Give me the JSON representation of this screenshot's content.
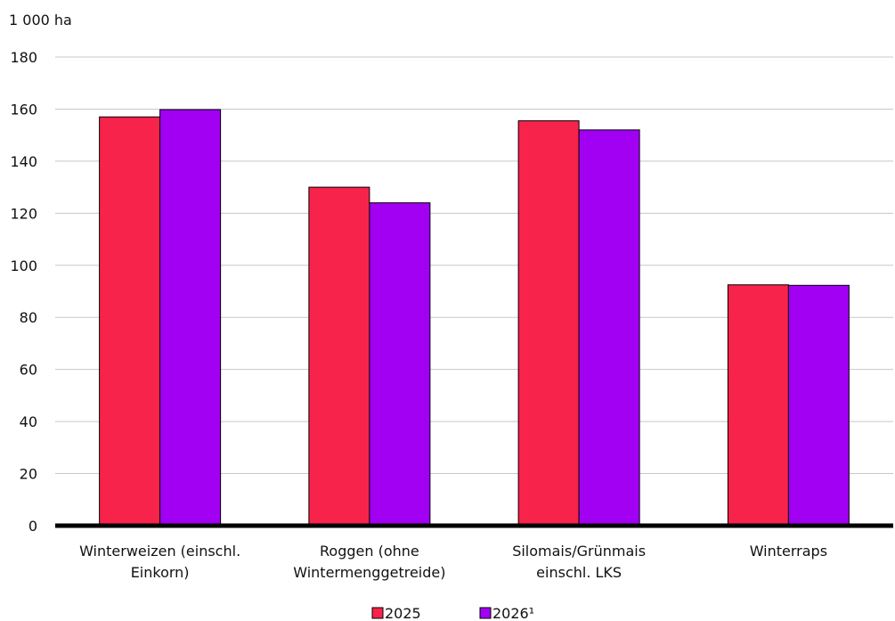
{
  "chart_data": {
    "type": "bar",
    "unit_label": "1 000 ha",
    "categories": [
      [
        "Winterweizen (einschl.",
        "Einkorn)"
      ],
      [
        "Roggen (ohne",
        "Wintermenggetreide)"
      ],
      [
        "Silomais/Grünmais",
        "einschl. LKS"
      ],
      [
        "Winterraps"
      ]
    ],
    "series": [
      {
        "name": "2025",
        "color": "#F8234A",
        "values": [
          157,
          130,
          155.5,
          92.5
        ]
      },
      {
        "name": "2026¹",
        "color": "#A100F2",
        "values": [
          159.8,
          124,
          152,
          92.3
        ]
      }
    ],
    "ylim": [
      0,
      180
    ],
    "yticks": [
      0,
      20,
      40,
      60,
      80,
      100,
      120,
      140,
      160,
      180
    ],
    "grid": true,
    "legend_position": "bottom-center"
  }
}
